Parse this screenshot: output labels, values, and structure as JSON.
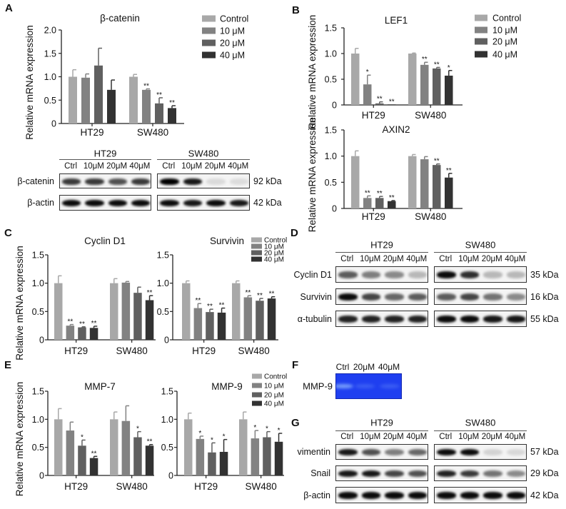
{
  "panels": {
    "A": "A",
    "B": "B",
    "C": "C",
    "D": "D",
    "E": "E",
    "F": "F",
    "G": "G"
  },
  "legend": {
    "items": [
      "Control",
      "10 μM",
      "20 μM",
      "40 μM"
    ],
    "colors": [
      "#a8a8a8",
      "#828282",
      "#606060",
      "#323232"
    ]
  },
  "chart_data": [
    {
      "type": "bar",
      "panel": "A",
      "title": "β-catenin",
      "ylabel": "Relative mRNA expression",
      "ylim": [
        0,
        2.0
      ],
      "yticks": [
        "0",
        "0.5",
        "1.0",
        "1.5",
        "2.0"
      ],
      "categories": [
        "HT29",
        "SW480"
      ],
      "series": [
        {
          "name": "Control",
          "values": [
            1.0,
            1.0
          ],
          "errors": [
            0.15,
            0.05
          ],
          "significance": [
            "",
            ""
          ]
        },
        {
          "name": "10 μM",
          "values": [
            0.98,
            0.72
          ],
          "errors": [
            0.08,
            0.02
          ],
          "significance": [
            "",
            "**"
          ]
        },
        {
          "name": "20 μM",
          "values": [
            1.24,
            0.43
          ],
          "errors": [
            0.37,
            0.12
          ],
          "significance": [
            "",
            "**"
          ]
        },
        {
          "name": "40 μM",
          "values": [
            0.72,
            0.33
          ],
          "errors": [
            0.21,
            0.05
          ],
          "significance": [
            "",
            "**"
          ]
        }
      ]
    },
    {
      "type": "bar",
      "panel": "B",
      "title": "LEF1",
      "ylabel": "Relative mRNA expression",
      "ylim": [
        0,
        1.5
      ],
      "yticks": [
        "0",
        "0.5",
        "1.0",
        "1.5"
      ],
      "categories": [
        "HT29",
        "SW480"
      ],
      "series": [
        {
          "name": "Control",
          "values": [
            1.0,
            1.0
          ],
          "errors": [
            0.1,
            0.01
          ],
          "significance": [
            "",
            ""
          ]
        },
        {
          "name": "10 μM",
          "values": [
            0.4,
            0.78
          ],
          "errors": [
            0.18,
            0.05
          ],
          "significance": [
            "*",
            "**"
          ]
        },
        {
          "name": "20 μM",
          "values": [
            0.03,
            0.71
          ],
          "errors": [
            0.03,
            0.02
          ],
          "significance": [
            "**",
            "**"
          ]
        },
        {
          "name": "40 μM",
          "values": [
            0.01,
            0.57
          ],
          "errors": [
            0.0,
            0.1
          ],
          "significance": [
            "**",
            "*"
          ]
        }
      ]
    },
    {
      "type": "bar",
      "panel": "B",
      "title": "AXIN2",
      "ylabel": "Relative mRNA expression",
      "ylim": [
        0,
        1.5
      ],
      "yticks": [
        "0",
        "0.5",
        "1.0",
        "1.5"
      ],
      "categories": [
        "HT29",
        "SW480"
      ],
      "series": [
        {
          "name": "Control",
          "values": [
            1.0,
            1.0
          ],
          "errors": [
            0.1,
            0.03
          ],
          "significance": [
            "",
            ""
          ]
        },
        {
          "name": "10 μM",
          "values": [
            0.2,
            0.94
          ],
          "errors": [
            0.04,
            0.05
          ],
          "significance": [
            "**",
            ""
          ]
        },
        {
          "name": "20 μM",
          "values": [
            0.2,
            0.83
          ],
          "errors": [
            0.03,
            0.02
          ],
          "significance": [
            "**",
            "**"
          ]
        },
        {
          "name": "40 μM",
          "values": [
            0.14,
            0.59
          ],
          "errors": [
            0.01,
            0.08
          ],
          "significance": [
            "**",
            "**"
          ]
        }
      ]
    },
    {
      "type": "bar",
      "panel": "C",
      "title": "Cyclin D1",
      "ylabel": "Relative mRNA expression",
      "ylim": [
        0,
        1.5
      ],
      "yticks": [
        "0",
        "0.5",
        "1.0",
        "1.5"
      ],
      "categories": [
        "HT29",
        "SW480"
      ],
      "series": [
        {
          "name": "Control",
          "values": [
            1.0,
            1.0
          ],
          "errors": [
            0.13,
            0.08
          ],
          "significance": [
            "",
            ""
          ]
        },
        {
          "name": "10 μM",
          "values": [
            0.25,
            1.01
          ],
          "errors": [
            0.02,
            0.02
          ],
          "significance": [
            "**",
            ""
          ]
        },
        {
          "name": "20 μM",
          "values": [
            0.22,
            0.83
          ],
          "errors": [
            0.01,
            0.1
          ],
          "significance": [
            "**",
            ""
          ]
        },
        {
          "name": "40 μM",
          "values": [
            0.21,
            0.7
          ],
          "errors": [
            0.03,
            0.08
          ],
          "significance": [
            "**",
            "**"
          ]
        }
      ]
    },
    {
      "type": "bar",
      "panel": "C",
      "title": "Survivin",
      "ylabel": "",
      "ylim": [
        0,
        1.5
      ],
      "yticks": [
        "0",
        "0.5",
        "1.0",
        "1.5"
      ],
      "categories": [
        "HT29",
        "SW480"
      ],
      "series": [
        {
          "name": "Control",
          "values": [
            1.0,
            1.0
          ],
          "errors": [
            0.04,
            0.04
          ],
          "significance": [
            "",
            ""
          ]
        },
        {
          "name": "10 μM",
          "values": [
            0.56,
            0.75
          ],
          "errors": [
            0.08,
            0.03
          ],
          "significance": [
            "**",
            "**"
          ]
        },
        {
          "name": "20 μM",
          "values": [
            0.49,
            0.69
          ],
          "errors": [
            0.05,
            0.04
          ],
          "significance": [
            "**",
            "**"
          ]
        },
        {
          "name": "40 μM",
          "values": [
            0.48,
            0.73
          ],
          "errors": [
            0.08,
            0.03
          ],
          "significance": [
            "**",
            "**"
          ]
        }
      ]
    },
    {
      "type": "bar",
      "panel": "E",
      "title": "MMP-7",
      "ylabel": "Relative mRNA expression",
      "ylim": [
        0,
        1.5
      ],
      "yticks": [
        "0",
        "0.5",
        "1.0",
        "1.5"
      ],
      "categories": [
        "HT29",
        "SW480"
      ],
      "series": [
        {
          "name": "Control",
          "values": [
            1.0,
            1.0
          ],
          "errors": [
            0.19,
            0.13
          ],
          "significance": [
            "",
            ""
          ]
        },
        {
          "name": "10 μM",
          "values": [
            0.8,
            0.97
          ],
          "errors": [
            0.15,
            0.27
          ],
          "significance": [
            "",
            ""
          ]
        },
        {
          "name": "20 μM",
          "values": [
            0.53,
            0.68
          ],
          "errors": [
            0.1,
            0.1
          ],
          "significance": [
            "*",
            "*"
          ]
        },
        {
          "name": "40 μM",
          "values": [
            0.31,
            0.53
          ],
          "errors": [
            0.03,
            0.02
          ],
          "significance": [
            "**",
            "**"
          ]
        }
      ]
    },
    {
      "type": "bar",
      "panel": "E",
      "title": "MMP-9",
      "ylabel": "",
      "ylim": [
        0,
        1.5
      ],
      "yticks": [
        "0",
        "0.5",
        "1.0",
        "1.5"
      ],
      "categories": [
        "HT29",
        "SW480"
      ],
      "series": [
        {
          "name": "Control",
          "values": [
            1.0,
            1.0
          ],
          "errors": [
            0.11,
            0.13
          ],
          "significance": [
            "",
            ""
          ]
        },
        {
          "name": "10 μM",
          "values": [
            0.65,
            0.66
          ],
          "errors": [
            0.05,
            0.14
          ],
          "significance": [
            "*",
            "*"
          ]
        },
        {
          "name": "20 μM",
          "values": [
            0.41,
            0.68
          ],
          "errors": [
            0.17,
            0.1
          ],
          "significance": [
            "*",
            "*"
          ]
        },
        {
          "name": "40 μM",
          "values": [
            0.42,
            0.6
          ],
          "errors": [
            0.22,
            0.15
          ],
          "significance": [
            "*",
            "*"
          ]
        }
      ]
    }
  ],
  "blots": [
    {
      "panel": "A",
      "groups": [
        "HT29",
        "SW480"
      ],
      "lanes": [
        "Ctrl",
        "10μM",
        "20μM",
        "40μM"
      ],
      "rows": [
        {
          "label": "β-catenin",
          "kda": "92 kDa",
          "intensity": [
            [
              0.75,
              0.75,
              0.65,
              0.75
            ],
            [
              1.0,
              0.9,
              0.05,
              0.04
            ]
          ]
        },
        {
          "label": "β-actin",
          "kda": "42 kDa",
          "intensity": [
            [
              0.95,
              0.95,
              0.95,
              0.95
            ],
            [
              0.95,
              0.9,
              0.95,
              0.9
            ]
          ]
        }
      ]
    },
    {
      "panel": "D",
      "groups": [
        "HT29",
        "SW480"
      ],
      "lanes": [
        "Ctrl",
        "10μM",
        "20μM",
        "40μM"
      ],
      "rows": [
        {
          "label": "Cyclin D1",
          "kda": "35 kDa",
          "intensity": [
            [
              0.6,
              0.45,
              0.4,
              0.2
            ],
            [
              0.95,
              0.8,
              0.2,
              0.2
            ]
          ]
        },
        {
          "label": "Survivin",
          "kda": "16 kDa",
          "intensity": [
            [
              0.95,
              0.7,
              0.55,
              0.6
            ],
            [
              0.6,
              0.7,
              0.5,
              0.4
            ]
          ]
        },
        {
          "label": "α-tubulin",
          "kda": "55 kDa",
          "intensity": [
            [
              0.85,
              0.85,
              0.85,
              0.85
            ],
            [
              0.95,
              0.95,
              0.9,
              0.9
            ]
          ]
        }
      ]
    },
    {
      "panel": "G",
      "groups": [
        "HT29",
        "SW480"
      ],
      "lanes": [
        "Ctrl",
        "10μM",
        "20μM",
        "40μM"
      ],
      "rows": [
        {
          "label": "vimentin",
          "kda": "57 kDa",
          "intensity": [
            [
              0.9,
              0.65,
              0.45,
              0.55
            ],
            [
              0.95,
              0.95,
              0.08,
              0.06
            ]
          ]
        },
        {
          "label": "Snail",
          "kda": "29 kDa",
          "intensity": [
            [
              0.9,
              0.9,
              0.7,
              0.65
            ],
            [
              0.85,
              0.75,
              0.5,
              0.4
            ]
          ]
        },
        {
          "label": "β-actin",
          "kda": "42 kDa",
          "intensity": [
            [
              0.95,
              0.95,
              0.95,
              0.95
            ],
            [
              0.95,
              0.95,
              0.95,
              0.95
            ]
          ]
        }
      ]
    }
  ],
  "zymography": {
    "panel": "F",
    "label": "MMP-9",
    "lanes": [
      "Ctrl",
      "20μM",
      "40μM"
    ],
    "intensity": [
      0.8,
      0.25,
      0.25
    ],
    "gel_color": "#1f3ff0"
  }
}
